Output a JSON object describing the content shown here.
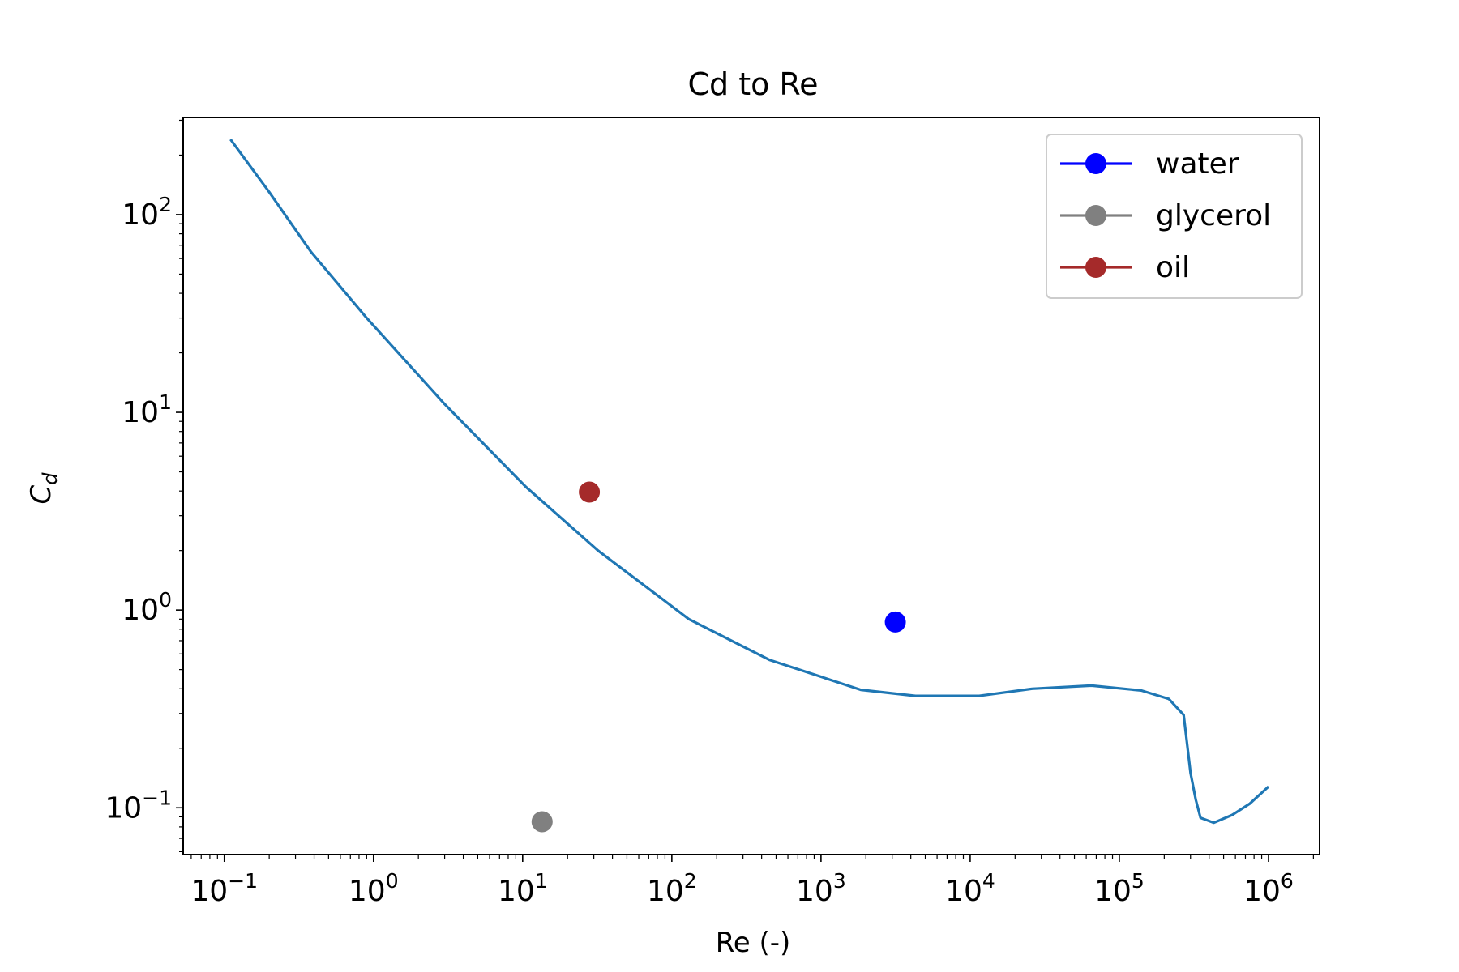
{
  "chart_data": {
    "type": "line",
    "title": "Cd to Re",
    "xlabel": "Re (-)",
    "ylabel": "C_d",
    "xscale": "log",
    "yscale": "log",
    "xlim": [
      0.053,
      2200000
    ],
    "ylim": [
      0.058,
      310
    ],
    "grid": false,
    "legend_position": "top-right",
    "x_ticks": [
      {
        "base": "10",
        "exp": "−1",
        "value": 0.1
      },
      {
        "base": "10",
        "exp": "0",
        "value": 1
      },
      {
        "base": "10",
        "exp": "1",
        "value": 10
      },
      {
        "base": "10",
        "exp": "2",
        "value": 100
      },
      {
        "base": "10",
        "exp": "3",
        "value": 1000
      },
      {
        "base": "10",
        "exp": "4",
        "value": 10000
      },
      {
        "base": "10",
        "exp": "5",
        "value": 100000
      },
      {
        "base": "10",
        "exp": "6",
        "value": 1000000
      }
    ],
    "y_ticks": [
      {
        "base": "10",
        "exp": "−1",
        "value": 0.1
      },
      {
        "base": "10",
        "exp": "0",
        "value": 1
      },
      {
        "base": "10",
        "exp": "1",
        "value": 10
      },
      {
        "base": "10",
        "exp": "2",
        "value": 100
      }
    ],
    "curve": {
      "color": "#1f77b4",
      "points": [
        [
          0.11,
          240
        ],
        [
          0.2,
          130
        ],
        [
          0.38,
          65
        ],
        [
          0.9,
          30
        ],
        [
          3.0,
          11
        ],
        [
          10.5,
          4.2
        ],
        [
          32,
          2.0
        ],
        [
          130,
          0.9
        ],
        [
          450,
          0.56
        ],
        [
          1850,
          0.395
        ],
        [
          4300,
          0.368
        ],
        [
          11500,
          0.368
        ],
        [
          26000,
          0.4
        ],
        [
          65000,
          0.415
        ],
        [
          140000,
          0.392
        ],
        [
          215000,
          0.355
        ],
        [
          270000,
          0.295
        ],
        [
          300000,
          0.15
        ],
        [
          325000,
          0.11
        ],
        [
          350000,
          0.089
        ],
        [
          430000,
          0.084
        ],
        [
          570000,
          0.092
        ],
        [
          750000,
          0.105
        ],
        [
          1000000,
          0.128
        ]
      ]
    },
    "series": [
      {
        "name": "water",
        "color": "#0000ff",
        "points": [
          [
            3150,
            0.87
          ]
        ]
      },
      {
        "name": "glycerol",
        "color": "#808080",
        "points": [
          [
            13.5,
            0.085
          ]
        ]
      },
      {
        "name": "oil",
        "color": "#a52a2a",
        "points": [
          [
            28,
            3.95
          ]
        ]
      }
    ]
  }
}
